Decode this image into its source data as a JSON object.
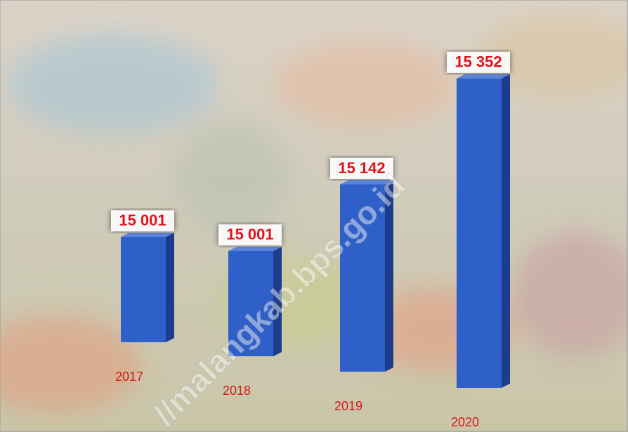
{
  "chart_data": {
    "type": "bar3d",
    "categories": [
      "2017",
      "2018",
      "2019",
      "2020"
    ],
    "values": [
      15001,
      15001,
      15142,
      15352
    ],
    "value_labels": [
      "15 001",
      "15 001",
      "15 142",
      "15 352"
    ],
    "color": "#2f5fc8",
    "ylim": [
      14820,
      15400
    ],
    "watermark": "//malangkab.bps.go.id"
  }
}
